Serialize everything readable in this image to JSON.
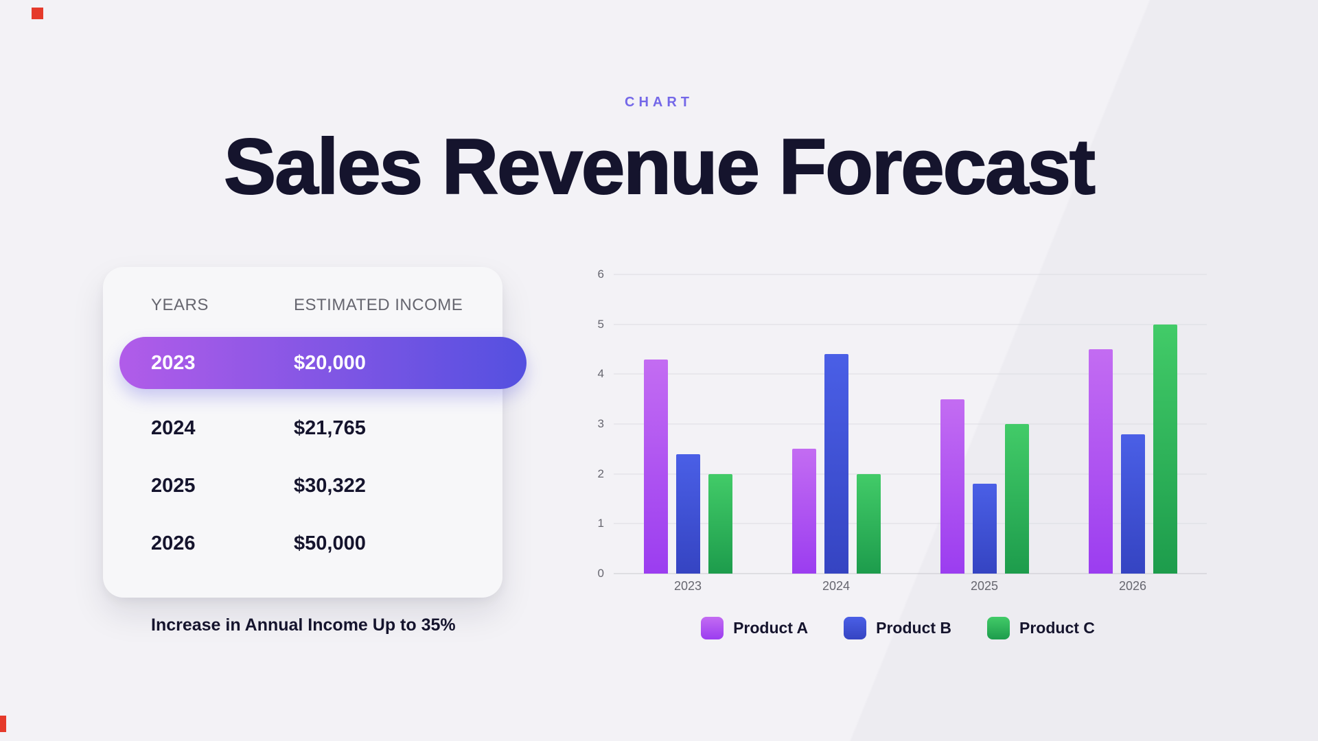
{
  "page": {
    "kicker": "CHART",
    "title": "Sales Revenue Forecast",
    "footnote": "Increase in Annual Income Up to 35%"
  },
  "table": {
    "headers": [
      "YEARS",
      "ESTIMATED INCOME"
    ],
    "rows": [
      {
        "year": "2023",
        "income": "$20,000",
        "highlighted": true
      },
      {
        "year": "2024",
        "income": "$21,765",
        "highlighted": false
      },
      {
        "year": "2025",
        "income": "$30,322",
        "highlighted": false
      },
      {
        "year": "2026",
        "income": "$50,000",
        "highlighted": false
      }
    ]
  },
  "chart_data": {
    "type": "bar",
    "title": "Sales Revenue Forecast",
    "categories": [
      "2023",
      "2024",
      "2025",
      "2026"
    ],
    "series": [
      {
        "name": "Product A",
        "color_light": "#c36cf2",
        "color_dark": "#9b3df0",
        "values": [
          4.3,
          2.5,
          3.5,
          4.5
        ]
      },
      {
        "name": "Product B",
        "color_light": "#4a5fe6",
        "color_dark": "#3544c2",
        "values": [
          2.4,
          4.4,
          1.8,
          2.8
        ]
      },
      {
        "name": "Product C",
        "color_light": "#42cb68",
        "color_dark": "#1d9c4c",
        "values": [
          2.0,
          2.0,
          3.0,
          5.0
        ]
      }
    ],
    "ylim": [
      0,
      6
    ],
    "yticks": [
      0,
      1,
      2,
      3,
      4,
      5,
      6
    ],
    "grid": true,
    "legend_position": "bottom"
  },
  "colors": {
    "bg": "#f3f2f6",
    "bg-lower": "#edecf1",
    "ink": "#15142d",
    "muted": "#66666f",
    "kicker": "#7468e8",
    "accent-red": "#e53a2b",
    "card-bg": "#f7f7f9",
    "highlight-start": "#b15ce9",
    "highlight-end": "#5450e0",
    "grid-line": "#dcdce1"
  }
}
